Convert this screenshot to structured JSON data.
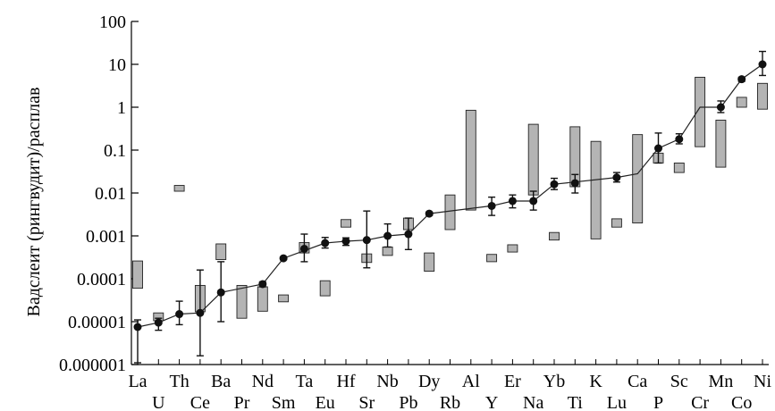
{
  "chart_data": {
    "type": "scatter",
    "title": "",
    "xlabel": "",
    "ylabel": "Вадслеит (рингвудит)/расплав",
    "y_scale": "log",
    "ylim": [
      1e-06,
      100
    ],
    "y_ticks": [
      "100",
      "10",
      "1",
      "0.1",
      "0.01",
      "0.001",
      "0.0001",
      "0.00001",
      "0.000001"
    ],
    "grid": false,
    "legend": "none",
    "colors": {
      "range_fill": "#b4b4b4",
      "range_stroke": "#222222",
      "point": "#111111",
      "line": "#222222"
    },
    "categories": [
      "La",
      "U",
      "Th",
      "Ce",
      "Ba",
      "Pr",
      "Nd",
      "Sm",
      "Ta",
      "Eu",
      "Hf",
      "Sr",
      "Nb",
      "Pb",
      "Dy",
      "Rb",
      "Al",
      "Y",
      "Er",
      "Na",
      "Yb",
      "Ti",
      "K",
      "Lu",
      "Ca",
      "P",
      "Sc",
      "Cr",
      "Mn",
      "Co",
      "Ni"
    ],
    "series": [
      {
        "marker": "circle-with-error-bar",
        "points": [
          {
            "cat": "La",
            "y": 7.5e-06,
            "lo": 1.1e-06,
            "hi": 1.1e-05
          },
          {
            "cat": "U",
            "y": 9.5e-06,
            "lo": 6.3e-06,
            "hi": 1.2e-05
          },
          {
            "cat": "Th",
            "y": 1.5e-05,
            "lo": 8.5e-06,
            "hi": 3e-05
          },
          {
            "cat": "Ce",
            "y": 1.6e-05,
            "lo": 1.6e-06,
            "hi": 0.00016
          },
          {
            "cat": "Ba",
            "y": 4.8e-05,
            "lo": 1e-05,
            "hi": 0.00025
          },
          {
            "cat": "Nd",
            "y": 7.5e-05,
            "lo": 6.5e-05,
            "hi": 8.5e-05
          },
          {
            "cat": "Sm",
            "y": 0.0003,
            "lo": 0.00028,
            "hi": 0.00032
          },
          {
            "cat": "Ta",
            "y": 0.0005,
            "lo": 0.00025,
            "hi": 0.0011
          },
          {
            "cat": "Eu",
            "y": 0.00068,
            "lo": 0.00052,
            "hi": 0.00092
          },
          {
            "cat": "Hf",
            "y": 0.00075,
            "lo": 0.0006,
            "hi": 0.0009
          },
          {
            "cat": "Sr",
            "y": 0.0008,
            "lo": 0.00018,
            "hi": 0.0038
          },
          {
            "cat": "Nb",
            "y": 0.001,
            "lo": 0.00055,
            "hi": 0.0019
          },
          {
            "cat": "Pb",
            "y": 0.0011,
            "lo": 0.00048,
            "hi": 0.0026
          },
          {
            "cat": "Dy",
            "y": 0.0033,
            "lo": 0.003,
            "hi": 0.0036
          },
          {
            "cat": "Y",
            "y": 0.005,
            "lo": 0.003,
            "hi": 0.008
          },
          {
            "cat": "Er",
            "y": 0.0065,
            "lo": 0.0045,
            "hi": 0.009
          },
          {
            "cat": "Na",
            "y": 0.0065,
            "lo": 0.004,
            "hi": 0.011
          },
          {
            "cat": "Yb",
            "y": 0.016,
            "lo": 0.012,
            "hi": 0.022
          },
          {
            "cat": "Ti",
            "y": 0.017,
            "lo": 0.01,
            "hi": 0.027
          },
          {
            "cat": "Lu",
            "y": 0.023,
            "lo": 0.018,
            "hi": 0.03
          },
          {
            "cat": "P",
            "y": 0.11,
            "lo": 0.05,
            "hi": 0.25
          },
          {
            "cat": "Sc",
            "y": 0.18,
            "lo": 0.14,
            "hi": 0.24
          },
          {
            "cat": "Mn",
            "y": 1.0,
            "lo": 0.75,
            "hi": 1.4
          },
          {
            "cat": "Co",
            "y": 4.5,
            "lo": 4.0,
            "hi": 5.0
          },
          {
            "cat": "Ni",
            "y": 10,
            "lo": 5.5,
            "hi": 20
          }
        ],
        "connecting_line": [
          [
            "La",
            7.5e-06
          ],
          [
            "U",
            9.5e-06
          ],
          [
            "Th",
            1.5e-05
          ],
          [
            "Ce",
            1.6e-05
          ],
          [
            "Ba",
            4.8e-05
          ],
          [
            "Nd",
            7.5e-05
          ],
          [
            "Sm",
            0.0003
          ],
          [
            "Eu",
            0.00068
          ],
          [
            "Hf",
            0.00075
          ],
          [
            "Sr",
            0.0008
          ],
          [
            "Nb",
            0.001
          ],
          [
            "Pb",
            0.0011
          ],
          [
            "Dy",
            0.0033
          ],
          [
            "Y",
            0.005
          ],
          [
            "Er",
            0.0065
          ],
          [
            "Na",
            0.0065
          ],
          [
            "Yb",
            0.016
          ],
          [
            "Lu",
            0.023
          ],
          [
            "Ca",
            0.028
          ],
          [
            "P",
            0.11
          ],
          [
            "Sc",
            0.18
          ],
          [
            "Cr",
            1.0
          ],
          [
            "Mn",
            1.0
          ],
          [
            "Co",
            4.5
          ],
          [
            "Ni",
            10
          ]
        ]
      },
      {
        "marker": "gray-range-box",
        "ranges": [
          {
            "cat": "La",
            "lo": 6e-05,
            "hi": 0.00026
          },
          {
            "cat": "U",
            "lo": 1.05e-05,
            "hi": 1.6e-05
          },
          {
            "cat": "Th",
            "lo": 0.011,
            "hi": 0.015
          },
          {
            "cat": "Ce",
            "lo": 1.7e-05,
            "hi": 7e-05
          },
          {
            "cat": "Ba",
            "lo": 0.00028,
            "hi": 0.00065
          },
          {
            "cat": "Pr",
            "lo": 1.2e-05,
            "hi": 7e-05
          },
          {
            "cat": "Nd",
            "lo": 1.75e-05,
            "hi": 6.5e-05
          },
          {
            "cat": "Sm",
            "lo": 2.9e-05,
            "hi": 4.2e-05
          },
          {
            "cat": "Ta",
            "lo": 0.0004,
            "hi": 0.0007
          },
          {
            "cat": "Eu",
            "lo": 4e-05,
            "hi": 9e-05
          },
          {
            "cat": "Hf",
            "lo": 0.0016,
            "hi": 0.0024
          },
          {
            "cat": "Sr",
            "lo": 0.00024,
            "hi": 0.00038
          },
          {
            "cat": "Nb",
            "lo": 0.00035,
            "hi": 0.00055
          },
          {
            "cat": "Pb",
            "lo": 0.0014,
            "hi": 0.0026
          },
          {
            "cat": "Dy",
            "lo": 0.00015,
            "hi": 0.0004
          },
          {
            "cat": "Rb",
            "lo": 0.0014,
            "hi": 0.009
          },
          {
            "cat": "Al",
            "lo": 0.004,
            "hi": 0.85
          },
          {
            "cat": "Y",
            "lo": 0.00025,
            "hi": 0.00037
          },
          {
            "cat": "Er",
            "lo": 0.00042,
            "hi": 0.00062
          },
          {
            "cat": "Na",
            "lo": 0.009,
            "hi": 0.4
          },
          {
            "cat": "Yb",
            "lo": 0.0008,
            "hi": 0.0012
          },
          {
            "cat": "Ti",
            "lo": 0.014,
            "hi": 0.35
          },
          {
            "cat": "K",
            "lo": 0.00085,
            "hi": 0.16
          },
          {
            "cat": "Lu",
            "lo": 0.0016,
            "hi": 0.0025
          },
          {
            "cat": "Ca",
            "lo": 0.002,
            "hi": 0.23
          },
          {
            "cat": "P",
            "lo": 0.05,
            "hi": 0.085
          },
          {
            "cat": "Sc",
            "lo": 0.03,
            "hi": 0.05
          },
          {
            "cat": "Cr",
            "lo": 0.12,
            "hi": 5.0
          },
          {
            "cat": "Mn",
            "lo": 0.04,
            "hi": 0.5
          },
          {
            "cat": "Co",
            "lo": 1.0,
            "hi": 1.7
          },
          {
            "cat": "Ni",
            "lo": 0.9,
            "hi": 3.6
          }
        ]
      }
    ]
  }
}
